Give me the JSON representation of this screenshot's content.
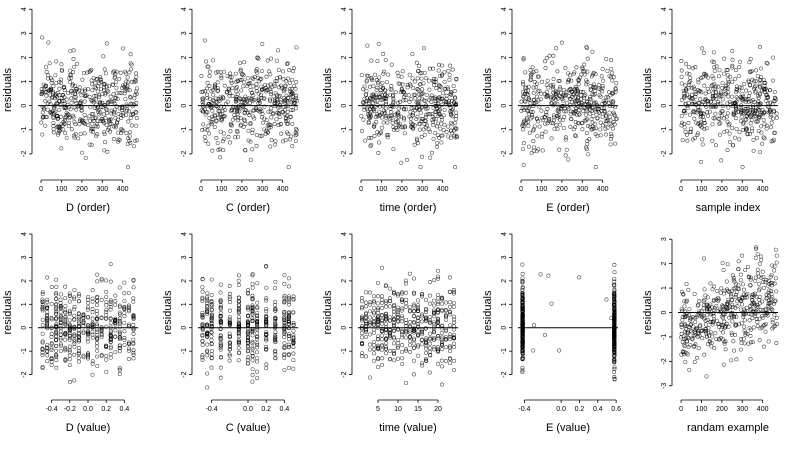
{
  "figure": {
    "background": "#ffffff",
    "point_color": "#000000",
    "line_color": "#000000"
  },
  "chart_data": [
    {
      "type": "scatter",
      "panel": "D (order)",
      "xlabel": "D (order)",
      "ylabel": "residuals",
      "x_ticks": [
        0,
        100,
        200,
        300,
        400
      ],
      "x_tick_labels": [
        "0",
        "100",
        "200",
        "300",
        "400"
      ],
      "y_ticks": [
        -2,
        -1,
        0,
        1,
        2,
        3,
        4
      ],
      "y_tick_labels": [
        "-2",
        "-1",
        "0",
        "1",
        "2",
        "3",
        "4"
      ],
      "xlim": [
        -15,
        475
      ],
      "ylim": [
        -3.0,
        4.3
      ],
      "hline": 0,
      "n_points": 470,
      "pattern": "uniform"
    },
    {
      "type": "scatter",
      "panel": "C (order)",
      "xlabel": "C (order)",
      "ylabel": "residuals",
      "x_ticks": [
        0,
        100,
        200,
        300,
        400
      ],
      "x_tick_labels": [
        "0",
        "100",
        "200",
        "300",
        "400"
      ],
      "y_ticks": [
        -2,
        -1,
        0,
        1,
        2,
        3,
        4
      ],
      "y_tick_labels": [
        "-2",
        "-1",
        "0",
        "1",
        "2",
        "3",
        "4"
      ],
      "xlim": [
        -15,
        475
      ],
      "ylim": [
        -3.0,
        4.3
      ],
      "hline": 0,
      "n_points": 470,
      "pattern": "uniform"
    },
    {
      "type": "scatter",
      "panel": "time (order)",
      "xlabel": "time (order)",
      "ylabel": "residuals",
      "x_ticks": [
        0,
        100,
        200,
        300,
        400
      ],
      "x_tick_labels": [
        "0",
        "100",
        "200",
        "300",
        "400"
      ],
      "y_ticks": [
        -2,
        -1,
        0,
        1,
        2,
        3,
        4
      ],
      "y_tick_labels": [
        "-2",
        "-1",
        "0",
        "1",
        "2",
        "3",
        "4"
      ],
      "xlim": [
        -15,
        475
      ],
      "ylim": [
        -3.0,
        4.3
      ],
      "hline": 0,
      "n_points": 470,
      "pattern": "uniform"
    },
    {
      "type": "scatter",
      "panel": "E (order)",
      "xlabel": "E (order)",
      "ylabel": "residuals",
      "x_ticks": [
        0,
        100,
        200,
        300,
        400
      ],
      "x_tick_labels": [
        "0",
        "100",
        "200",
        "300",
        "400"
      ],
      "y_ticks": [
        -2,
        -1,
        0,
        1,
        2,
        3,
        4
      ],
      "y_tick_labels": [
        "-2",
        "-1",
        "0",
        "1",
        "2",
        "3",
        "4"
      ],
      "xlim": [
        -15,
        475
      ],
      "ylim": [
        -3.0,
        4.3
      ],
      "hline": 0,
      "n_points": 470,
      "pattern": "uniform"
    },
    {
      "type": "scatter",
      "panel": "sample index",
      "xlabel": "sample index",
      "ylabel": "residuals",
      "x_ticks": [
        0,
        100,
        200,
        300,
        400
      ],
      "x_tick_labels": [
        "0",
        "100",
        "200",
        "300",
        "400"
      ],
      "y_ticks": [
        -2,
        -1,
        0,
        1,
        2,
        3,
        4
      ],
      "y_tick_labels": [
        "-2",
        "-1",
        "0",
        "1",
        "2",
        "3",
        "4"
      ],
      "xlim": [
        -15,
        475
      ],
      "ylim": [
        -3.0,
        4.3
      ],
      "hline": 0,
      "n_points": 470,
      "pattern": "uniform"
    },
    {
      "type": "scatter",
      "panel": "D (value)",
      "xlabel": "D (value)",
      "ylabel": "residuals",
      "x_ticks": [
        -0.4,
        -0.2,
        0.0,
        0.2,
        0.4
      ],
      "x_tick_labels": [
        "-0.4",
        "-0.2",
        "0.0",
        "0.2",
        "0.4"
      ],
      "y_ticks": [
        -2,
        -1,
        0,
        1,
        2,
        3,
        4
      ],
      "y_tick_labels": [
        "-2",
        "-1",
        "0",
        "1",
        "2",
        "3",
        "4"
      ],
      "xlim": [
        -0.55,
        0.55
      ],
      "ylim": [
        -3.0,
        4.3
      ],
      "hline": 0,
      "n_points": 470,
      "pattern": "discrete",
      "x_levels": [
        -0.5,
        -0.45,
        -0.4,
        -0.35,
        -0.3,
        -0.25,
        -0.2,
        -0.15,
        -0.1,
        -0.05,
        0.0,
        0.05,
        0.1,
        0.15,
        0.2,
        0.25,
        0.3,
        0.35,
        0.4,
        0.45,
        0.5
      ]
    },
    {
      "type": "scatter",
      "panel": "C (value)",
      "xlabel": "C (value)",
      "ylabel": "residuals",
      "x_ticks": [
        -0.4,
        0.0,
        0.2,
        0.4
      ],
      "x_tick_labels": [
        "-0.4",
        "0.0",
        "0.2",
        "0.4"
      ],
      "y_ticks": [
        -2,
        -1,
        0,
        1,
        2,
        3,
        4
      ],
      "y_tick_labels": [
        "-2",
        "-1",
        "0",
        "1",
        "2",
        "3",
        "4"
      ],
      "xlim": [
        -0.55,
        0.55
      ],
      "ylim": [
        -3.0,
        4.3
      ],
      "hline": 0,
      "n_points": 470,
      "pattern": "discrete",
      "x_levels": [
        -0.5,
        -0.45,
        -0.4,
        -0.3,
        -0.2,
        -0.1,
        0.0,
        0.05,
        0.1,
        0.2,
        0.3,
        0.4,
        0.45,
        0.5
      ]
    },
    {
      "type": "scatter",
      "panel": "time (value)",
      "xlabel": "time (value)",
      "ylabel": "residuals",
      "x_ticks": [
        5,
        10,
        15,
        20
      ],
      "x_tick_labels": [
        "5",
        "10",
        "15",
        "20"
      ],
      "y_ticks": [
        -2,
        -1,
        0,
        1,
        2,
        3,
        4
      ],
      "y_tick_labels": [
        "-2",
        "-1",
        "0",
        "1",
        "2",
        "3",
        "4"
      ],
      "xlim": [
        0,
        25
      ],
      "ylim": [
        -3.0,
        4.3
      ],
      "hline": 0,
      "n_points": 470,
      "pattern": "discrete",
      "x_levels": [
        1,
        2,
        3,
        4,
        5,
        6,
        7,
        8,
        9,
        10,
        11,
        12,
        13,
        14,
        15,
        16,
        17,
        18,
        19,
        20,
        21,
        22,
        23,
        24
      ]
    },
    {
      "type": "scatter",
      "panel": "E (value)",
      "xlabel": "E (value)",
      "ylabel": "residuals",
      "x_ticks": [
        -0.4,
        0.0,
        0.2,
        0.4,
        0.6
      ],
      "x_tick_labels": [
        "-0.4",
        "0.0",
        "0.2",
        "0.4",
        "0.6"
      ],
      "y_ticks": [
        -2,
        -1,
        0,
        1,
        2,
        3,
        4
      ],
      "y_tick_labels": [
        "-2",
        "-1",
        "0",
        "1",
        "2",
        "3",
        "4"
      ],
      "xlim": [
        -0.47,
        0.62
      ],
      "ylim": [
        -3.0,
        4.3
      ],
      "hline": 0,
      "n_points": 470,
      "pattern": "two_clusters",
      "x_levels": [
        -0.42,
        0.58
      ]
    },
    {
      "type": "scatter",
      "panel": "randam example",
      "xlabel": "randam example",
      "ylabel": "residuals",
      "x_ticks": [
        0,
        100,
        200,
        300,
        400
      ],
      "x_tick_labels": [
        "0",
        "100",
        "200",
        "300",
        "400"
      ],
      "y_ticks": [
        -3,
        -2,
        -1,
        0,
        1,
        2,
        3
      ],
      "y_tick_labels": [
        "-3",
        "-2",
        "-1",
        "0",
        "1",
        "2",
        "3"
      ],
      "xlim": [
        -15,
        475
      ],
      "ylim": [
        -3.5,
        3.5
      ],
      "hline": 0,
      "n_points": 470,
      "pattern": "uniform_trend"
    }
  ]
}
